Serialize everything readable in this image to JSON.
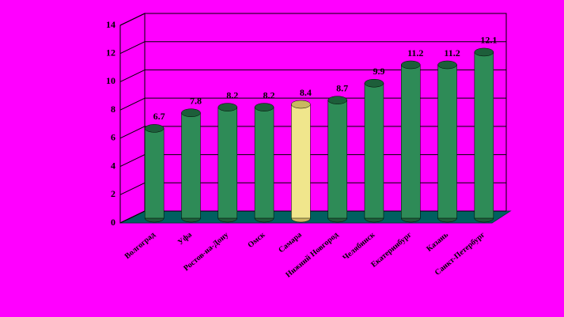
{
  "chart_data": {
    "type": "bar",
    "categories": [
      "Волгоград",
      "Уфа",
      "Ростов-на-Дону",
      "Омск",
      "Самара",
      "Нижний Новгород",
      "Челябинск",
      "Екатеринбург",
      "Казань",
      "Санкт-Петербург"
    ],
    "values": [
      6.7,
      7.8,
      8.2,
      8.2,
      8.4,
      8.7,
      9.9,
      11.2,
      11.2,
      12.1
    ],
    "colors": [
      "#2e8b57",
      "#2e8b57",
      "#2e8b57",
      "#2e8b57",
      "#f0e68c",
      "#2e8b57",
      "#2e8b57",
      "#2e8b57",
      "#2e8b57",
      "#2e8b57"
    ],
    "ylim": [
      0,
      14
    ],
    "yticks": [
      0,
      2,
      4,
      6,
      8,
      10,
      12,
      14
    ],
    "grid": true
  }
}
